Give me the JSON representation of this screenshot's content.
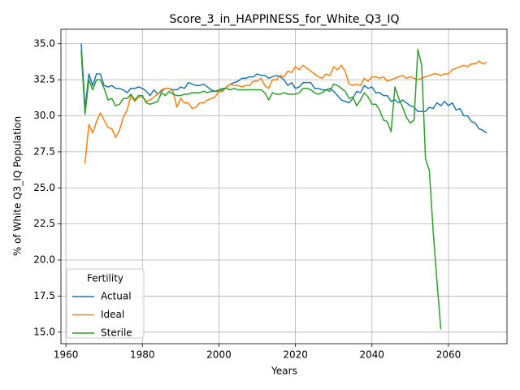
{
  "chart_data": {
    "type": "line",
    "title": "Score_3_in_HAPPINESS_for_White_Q3_IQ",
    "xlabel": "Years",
    "ylabel": "% of White Q3_IQ Population",
    "xlim": [
      1958.7,
      2075.3
    ],
    "xticks": [
      1960,
      1980,
      2000,
      2020,
      2040,
      2060
    ],
    "ylim": [
      14.2,
      36.0
    ],
    "yticks": [
      {
        "value": 15,
        "label": "15.0"
      },
      {
        "value": 17.5,
        "label": "17.5"
      },
      {
        "value": 20,
        "label": "20.0"
      },
      {
        "value": 22.5,
        "label": "22.5"
      },
      {
        "value": 25,
        "label": "25.0"
      },
      {
        "value": 27.5,
        "label": "27.5"
      },
      {
        "value": 30,
        "label": "30.0"
      },
      {
        "value": 32.5,
        "label": "32.5"
      },
      {
        "value": 35,
        "label": "35.0"
      }
    ],
    "grid": true,
    "legend_title": "Fertility",
    "legend_loc": "lower left",
    "series": [
      {
        "name": "Actual",
        "color": "#1f77b4",
        "x_start": 1964,
        "values": [
          35.0,
          30.5,
          32.9,
          32.1,
          32.9,
          32.9,
          32.1,
          32.0,
          32.1,
          31.9,
          31.9,
          31.8,
          31.6,
          31.9,
          31.9,
          32.0,
          31.9,
          31.7,
          31.4,
          31.8,
          31.5,
          31.7,
          31.9,
          31.9,
          31.8,
          31.8,
          32.0,
          31.9,
          32.3,
          32.2,
          32.1,
          32.1,
          32.2,
          32.0,
          31.8,
          31.7,
          31.7,
          31.8,
          32.0,
          32.2,
          32.3,
          32.4,
          32.6,
          32.6,
          32.7,
          32.7,
          32.9,
          32.8,
          32.8,
          32.6,
          32.7,
          32.8,
          32.7,
          32.5,
          32.1,
          32.3,
          31.9,
          32.0,
          32.3,
          32.3,
          32.3,
          31.9,
          31.9,
          31.8,
          31.8,
          31.9,
          31.7,
          31.4,
          31.1,
          31.0,
          30.9,
          31.2,
          31.7,
          31.6,
          32.1,
          31.9,
          32.0,
          31.6,
          31.6,
          31.4,
          31.4,
          31.0,
          31.1,
          30.9,
          31.1,
          30.9,
          30.7,
          30.6,
          30.3,
          30.3,
          30.3,
          30.6,
          30.5,
          30.9,
          30.7,
          31.0,
          30.7,
          30.9,
          30.4,
          30.5,
          30.0,
          30.0,
          29.6,
          29.5,
          29.1,
          29.0,
          28.8
        ]
      },
      {
        "name": "Ideal",
        "color": "#ff7f0e",
        "x_start": 1965,
        "values": [
          26.7,
          29.4,
          28.8,
          29.6,
          30.2,
          29.7,
          29.2,
          29.1,
          28.5,
          29.0,
          29.9,
          30.4,
          31.4,
          31.0,
          31.3,
          31.3,
          31.0,
          31.1,
          31.3,
          31.5,
          31.8,
          31.9,
          31.9,
          31.7,
          30.6,
          31.2,
          30.9,
          30.9,
          30.5,
          30.6,
          30.9,
          30.9,
          31.1,
          31.2,
          31.3,
          31.7,
          31.7,
          32.0,
          32.2,
          32.1,
          32.1,
          32.0,
          32.1,
          32.1,
          32.4,
          32.4,
          32.6,
          32.1,
          31.9,
          32.5,
          32.5,
          32.8,
          32.7,
          33.1,
          33.0,
          33.4,
          33.2,
          33.5,
          33.3,
          33.1,
          32.9,
          32.7,
          32.6,
          32.9,
          32.8,
          33.4,
          33.2,
          33.5,
          33.1,
          32.2,
          32.1,
          32.2,
          32.1,
          32.6,
          32.4,
          32.7,
          32.7,
          32.6,
          32.7,
          32.4,
          32.5,
          32.6,
          32.7,
          32.8,
          32.6,
          32.7,
          32.6,
          32.5,
          32.6,
          32.7,
          32.8,
          32.9,
          32.9,
          32.8,
          32.9,
          32.9,
          33.2,
          33.3,
          33.4,
          33.5,
          33.4,
          33.6,
          33.6,
          33.8,
          33.6,
          33.7
        ]
      },
      {
        "name": "Sterile",
        "color": "#2ca02c",
        "x_start": 1964,
        "values": [
          34.5,
          30.1,
          32.5,
          31.8,
          32.5,
          32.5,
          31.9,
          31.1,
          31.2,
          30.7,
          30.8,
          31.2,
          31.2,
          31.5,
          31.1,
          31.4,
          31.4,
          30.9,
          30.8,
          30.9,
          31.0,
          31.6,
          31.4,
          31.7,
          31.5,
          31.4,
          31.4,
          31.5,
          31.5,
          31.6,
          31.6,
          31.6,
          31.7,
          31.6,
          31.7,
          31.7,
          31.8,
          31.9,
          31.9,
          31.8,
          31.9,
          31.8,
          31.8,
          31.8,
          31.8,
          31.8,
          31.8,
          31.8,
          31.6,
          31.1,
          31.6,
          31.5,
          31.5,
          31.6,
          31.5,
          31.5,
          31.5,
          31.6,
          31.9,
          31.9,
          31.8,
          31.6,
          31.5,
          31.6,
          31.8,
          31.7,
          32.2,
          32.1,
          31.9,
          31.7,
          31.2,
          31.3,
          30.7,
          31.1,
          31.6,
          31.3,
          30.8,
          30.8,
          30.4,
          29.7,
          29.6,
          28.9,
          32.0,
          31.2,
          30.6,
          29.9,
          29.5,
          29.7,
          34.6,
          33.5,
          27.0,
          26.2,
          22.0,
          18.5,
          15.2
        ]
      }
    ]
  }
}
